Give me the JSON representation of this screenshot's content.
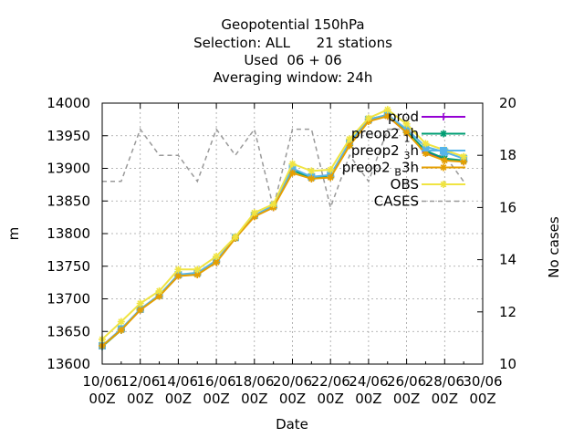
{
  "chart_data": {
    "type": "line",
    "title_lines": [
      "Geopotential 150hPa",
      "Selection: ALL      21 stations",
      "Used  06 + 06",
      "Averaging window: 24h"
    ],
    "xlabel": "Date",
    "ylabel": "m",
    "y2label": "No cases",
    "x_ticks": [
      {
        "line1": "10/06",
        "line2": "00Z"
      },
      {
        "line1": "12/06",
        "line2": "00Z"
      },
      {
        "line1": "14/06",
        "line2": "00Z"
      },
      {
        "line1": "16/06",
        "line2": "00Z"
      },
      {
        "line1": "18/06",
        "line2": "00Z"
      },
      {
        "line1": "20/06",
        "line2": "00Z"
      },
      {
        "line1": "22/06",
        "line2": "00Z"
      },
      {
        "line1": "24/06",
        "line2": "00Z"
      },
      {
        "line1": "26/06",
        "line2": "00Z"
      },
      {
        "line1": "28/06",
        "line2": "00Z"
      },
      {
        "line1": "30/06",
        "line2": "00Z"
      }
    ],
    "xlim": [
      0,
      20
    ],
    "ylim": [
      13600,
      14000
    ],
    "yticks": [
      13600,
      13650,
      13700,
      13750,
      13800,
      13850,
      13900,
      13950,
      14000
    ],
    "y2lim": [
      10,
      20
    ],
    "y2ticks": [
      10,
      12,
      14,
      16,
      18,
      20
    ],
    "legend_position": "top-right",
    "x": [
      0,
      1,
      2,
      3,
      4,
      5,
      6,
      7,
      8,
      9,
      10,
      11,
      12,
      13,
      14,
      15,
      16,
      17,
      18,
      19
    ],
    "series": [
      {
        "name": "prod",
        "axis": "y1",
        "color": "#9400d3",
        "marker": "plus",
        "dash": false,
        "values": [
          13628,
          13653,
          13683,
          13705,
          13735,
          13738,
          13757,
          13793,
          13827,
          13840,
          13900,
          13885,
          13887,
          13937,
          13975,
          13980,
          13955,
          13925,
          13915,
          13910
        ]
      },
      {
        "name": "preop2_1h",
        "label_main": "preop2",
        "label_sub": "1",
        "label_tail": "h",
        "axis": "y1",
        "color": "#009e73",
        "marker": "star",
        "dash": false,
        "values": [
          13627,
          13652,
          13684,
          13705,
          13737,
          13738,
          13758,
          13793,
          13827,
          13841,
          13897,
          13885,
          13888,
          13936,
          13975,
          13982,
          13957,
          13927,
          13915,
          13912
        ]
      },
      {
        "name": "preop2_3h",
        "label_main": "preop2",
        "label_sub": "3",
        "label_tail": "h",
        "axis": "y1",
        "color": "#56b4e9",
        "marker": "box",
        "dash": false,
        "values": [
          13628,
          13654,
          13684,
          13706,
          13737,
          13740,
          13759,
          13794,
          13828,
          13843,
          13900,
          13887,
          13890,
          13940,
          13975,
          13982,
          13960,
          13933,
          13925,
          13915
        ]
      },
      {
        "name": "preop2_B3h",
        "label_main": "preop2",
        "label_sub": "B",
        "label_tail": "3h",
        "axis": "y1",
        "color": "#e69f00",
        "marker": "star",
        "dash": false,
        "values": [
          13628,
          13652,
          13683,
          13704,
          13735,
          13737,
          13756,
          13793,
          13826,
          13840,
          13893,
          13884,
          13886,
          13935,
          13972,
          13980,
          13955,
          13923,
          13912,
          13910
        ]
      },
      {
        "name": "OBS",
        "axis": "y1",
        "color": "#f0e442",
        "marker": "star",
        "dash": false,
        "values": [
          13638,
          13665,
          13693,
          13712,
          13745,
          13745,
          13765,
          13795,
          13832,
          13845,
          13907,
          13896,
          13898,
          13945,
          13977,
          13990,
          13968,
          13938,
          13928,
          13918
        ]
      },
      {
        "name": "CASES",
        "axis": "y2",
        "color": "#999999",
        "marker": "none",
        "dash": true,
        "values": [
          17,
          17,
          19,
          18,
          18,
          17,
          19,
          18,
          19,
          16,
          19,
          19,
          16,
          18,
          17,
          19,
          19,
          18,
          18,
          17
        ]
      }
    ]
  }
}
